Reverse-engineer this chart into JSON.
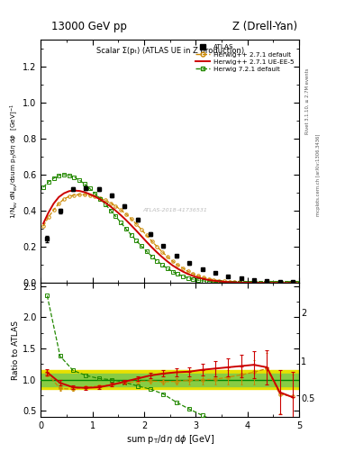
{
  "title_left": "13000 GeV pp",
  "title_right": "Z (Drell-Yan)",
  "main_title": "Scalar Σ(pₜ) (ATLAS UE in Z production)",
  "xlabel": "sum pₜ/dη dϕ [GeV]",
  "ylabel_main": "1/N$_{ev}$ dN$_{ev}$/dsum p$_T$/d$\\eta$ d$\\phi$  [GeV]$^{-1}$",
  "ylabel_ratio": "Ratio to ATLAS",
  "right_label_top": "Rivet 3.1.10, ≥ 2.7M events",
  "right_label_bot": "mcplots.cern.ch [arXiv:1306.3436]",
  "watermark": "ATLAS-2018-41736531",
  "xlim": [
    0,
    5.0
  ],
  "ylim_main": [
    0,
    1.35
  ],
  "ylim_ratio": [
    0.4,
    2.55
  ],
  "atlas_x": [
    0.125,
    0.375,
    0.625,
    0.875,
    1.125,
    1.375,
    1.625,
    1.875,
    2.125,
    2.375,
    2.625,
    2.875,
    3.125,
    3.375,
    3.625,
    3.875,
    4.125,
    4.375,
    4.625,
    4.875
  ],
  "atlas_y": [
    0.245,
    0.4,
    0.52,
    0.525,
    0.52,
    0.485,
    0.425,
    0.35,
    0.27,
    0.205,
    0.15,
    0.11,
    0.078,
    0.055,
    0.038,
    0.027,
    0.018,
    0.012,
    0.008,
    0.005
  ],
  "atlas_yerr": [
    0.018,
    0.013,
    0.01,
    0.01,
    0.01,
    0.01,
    0.01,
    0.01,
    0.01,
    0.008,
    0.007,
    0.006,
    0.005,
    0.005,
    0.004,
    0.003,
    0.003,
    0.002,
    0.002,
    0.001
  ],
  "hw271_x": [
    0.05,
    0.15,
    0.25,
    0.35,
    0.45,
    0.55,
    0.65,
    0.75,
    0.85,
    0.95,
    1.05,
    1.15,
    1.25,
    1.35,
    1.45,
    1.55,
    1.65,
    1.75,
    1.85,
    1.95,
    2.05,
    2.15,
    2.25,
    2.35,
    2.45,
    2.55,
    2.65,
    2.75,
    2.85,
    2.95,
    3.05,
    3.15,
    3.25,
    3.35,
    3.45,
    3.55,
    3.65,
    3.75,
    3.85,
    3.95,
    4.05,
    4.15,
    4.25,
    4.35,
    4.45,
    4.55,
    4.65,
    4.75,
    4.85,
    4.95
  ],
  "hw271_y": [
    0.315,
    0.365,
    0.405,
    0.44,
    0.465,
    0.48,
    0.487,
    0.49,
    0.49,
    0.486,
    0.48,
    0.47,
    0.458,
    0.443,
    0.426,
    0.405,
    0.382,
    0.356,
    0.327,
    0.296,
    0.264,
    0.232,
    0.202,
    0.173,
    0.146,
    0.122,
    0.1,
    0.082,
    0.065,
    0.051,
    0.04,
    0.031,
    0.024,
    0.018,
    0.014,
    0.011,
    0.008,
    0.006,
    0.005,
    0.003,
    0.0025,
    0.002,
    0.0015,
    0.001,
    0.0008,
    0.0006,
    0.0005,
    0.0004,
    0.0003,
    0.0002
  ],
  "hw271ue_x": [
    0.05,
    0.15,
    0.25,
    0.35,
    0.45,
    0.55,
    0.65,
    0.75,
    0.85,
    0.95,
    1.05,
    1.15,
    1.25,
    1.35,
    1.45,
    1.55,
    1.65,
    1.75,
    1.85,
    1.95,
    2.05,
    2.15,
    2.25,
    2.35,
    2.45,
    2.55,
    2.65,
    2.75,
    2.85,
    2.95,
    3.05,
    3.15,
    3.25,
    3.35,
    3.45,
    3.55,
    3.65,
    3.75,
    3.85,
    3.95,
    4.05,
    4.15,
    4.25,
    4.35,
    4.45,
    4.55,
    4.65,
    4.75,
    4.85,
    4.95
  ],
  "hw271ue_y": [
    0.33,
    0.39,
    0.44,
    0.476,
    0.497,
    0.509,
    0.512,
    0.51,
    0.503,
    0.492,
    0.479,
    0.463,
    0.445,
    0.424,
    0.401,
    0.376,
    0.349,
    0.32,
    0.29,
    0.259,
    0.228,
    0.198,
    0.17,
    0.144,
    0.12,
    0.098,
    0.08,
    0.064,
    0.05,
    0.039,
    0.03,
    0.023,
    0.017,
    0.013,
    0.01,
    0.007,
    0.005,
    0.004,
    0.003,
    0.002,
    0.0015,
    0.001,
    0.0008,
    0.0006,
    0.0005,
    0.0004,
    0.0003,
    0.0002,
    0.00015,
    0.0001
  ],
  "hw721_x": [
    0.05,
    0.15,
    0.25,
    0.35,
    0.45,
    0.55,
    0.65,
    0.75,
    0.85,
    0.95,
    1.05,
    1.15,
    1.25,
    1.35,
    1.45,
    1.55,
    1.65,
    1.75,
    1.85,
    1.95,
    2.05,
    2.15,
    2.25,
    2.35,
    2.45,
    2.55,
    2.65,
    2.75,
    2.85,
    2.95,
    3.05,
    3.15,
    3.25,
    3.35,
    3.45,
    3.55,
    3.65,
    3.75,
    3.85,
    3.95,
    4.05,
    4.15,
    4.25,
    4.35,
    4.45,
    4.55,
    4.65,
    4.75,
    4.85,
    4.95
  ],
  "hw721_y": [
    0.53,
    0.56,
    0.58,
    0.595,
    0.6,
    0.596,
    0.586,
    0.57,
    0.548,
    0.523,
    0.496,
    0.467,
    0.436,
    0.403,
    0.369,
    0.335,
    0.3,
    0.267,
    0.235,
    0.204,
    0.175,
    0.148,
    0.123,
    0.101,
    0.081,
    0.064,
    0.05,
    0.038,
    0.029,
    0.021,
    0.016,
    0.012,
    0.009,
    0.006,
    0.005,
    0.003,
    0.0025,
    0.002,
    0.0015,
    0.001,
    0.0008,
    0.0006,
    0.0005,
    0.0004,
    0.0003,
    0.00025,
    0.0002,
    0.00015,
    0.0001,
    8e-05
  ],
  "ratio_hw271_x": [
    0.125,
    0.375,
    0.625,
    0.875,
    1.125,
    1.375,
    1.625,
    1.875,
    2.125,
    2.375,
    2.625,
    2.875,
    3.125,
    3.375,
    3.625,
    3.875,
    4.125,
    4.375,
    4.625,
    4.875
  ],
  "ratio_hw271_y": [
    1.1,
    0.86,
    0.85,
    0.88,
    0.9,
    0.92,
    0.95,
    0.975,
    0.98,
    0.97,
    0.975,
    0.99,
    1.0,
    1.01,
    1.04,
    1.08,
    1.12,
    1.18,
    0.77,
    0.73
  ],
  "ratio_hw271_yerr": [
    0.05,
    0.04,
    0.03,
    0.03,
    0.03,
    0.03,
    0.03,
    0.03,
    0.04,
    0.04,
    0.05,
    0.06,
    0.07,
    0.09,
    0.12,
    0.15,
    0.2,
    0.25,
    0.3,
    0.35
  ],
  "ratio_hw271ue_x": [
    0.125,
    0.375,
    0.625,
    0.875,
    1.125,
    1.375,
    1.625,
    1.875,
    2.125,
    2.375,
    2.625,
    2.875,
    3.125,
    3.375,
    3.625,
    3.875,
    4.125,
    4.375,
    4.625,
    4.875
  ],
  "ratio_hw271ue_y": [
    1.12,
    0.95,
    0.88,
    0.87,
    0.88,
    0.92,
    0.97,
    1.02,
    1.07,
    1.1,
    1.12,
    1.13,
    1.16,
    1.18,
    1.2,
    1.22,
    1.24,
    1.2,
    0.8,
    0.72
  ],
  "ratio_hw271ue_yerr": [
    0.05,
    0.04,
    0.03,
    0.03,
    0.03,
    0.03,
    0.03,
    0.04,
    0.04,
    0.05,
    0.06,
    0.07,
    0.09,
    0.12,
    0.15,
    0.18,
    0.22,
    0.28,
    0.35,
    0.4
  ],
  "ratio_hw721_x": [
    0.125,
    0.375,
    0.625,
    0.875,
    1.125,
    1.375,
    1.625,
    1.875,
    2.125,
    2.375,
    2.625,
    2.875,
    3.125,
    3.375,
    3.625,
    3.875,
    4.125,
    4.375,
    4.625,
    4.875
  ],
  "ratio_hw721_y": [
    2.35,
    1.38,
    1.15,
    1.07,
    1.02,
    1.0,
    0.96,
    0.9,
    0.85,
    0.77,
    0.64,
    0.53,
    0.43,
    0.34,
    0.27,
    0.21,
    0.16,
    0.13,
    0.1,
    0.08
  ],
  "color_atlas": "#000000",
  "color_hw271": "#cc8800",
  "color_hw271ue": "#cc0000",
  "color_hw721": "#228800",
  "color_yellow_band": "#e8e000",
  "color_green_band": "#88cc44"
}
